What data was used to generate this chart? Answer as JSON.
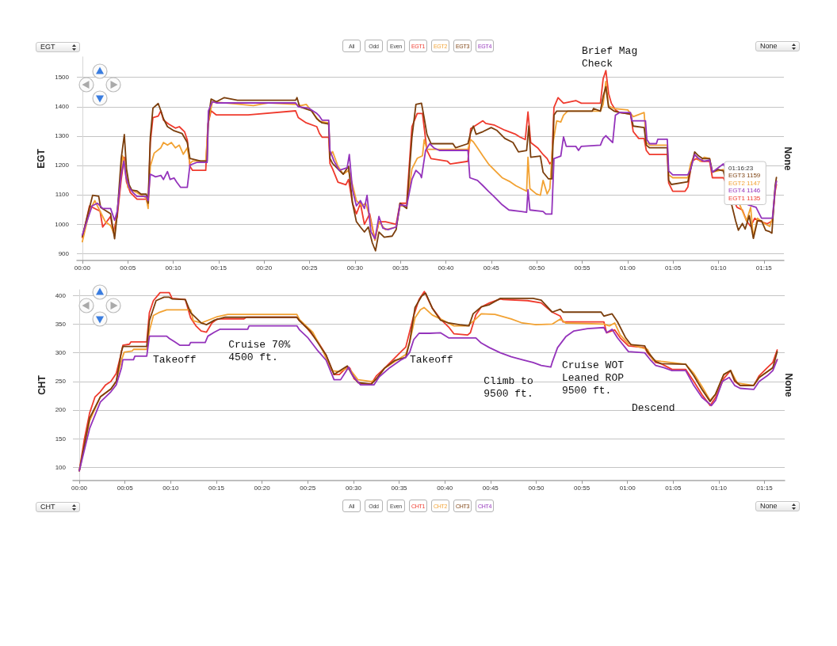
{
  "chart_data": [
    {
      "type": "line",
      "ylabel": "EGT",
      "y2label": "None",
      "legend": "top",
      "grid": "y",
      "marker": "none",
      "annotations": [
        "All",
        "Odd",
        "Even",
        "Brief Mag\nCheck",
        "01:16:23\nEGT3 1159\nEGT2 1147\nEGT4 1146\nEGT1 1135"
      ],
      "xlim": [
        -0.6,
        77.2
      ],
      "xticks": [
        {
          "value": 0,
          "label": "00:00"
        },
        {
          "value": 5,
          "label": "00:05"
        },
        {
          "value": 10,
          "label": "00:10"
        },
        {
          "value": 15,
          "label": "00:15"
        },
        {
          "value": 20,
          "label": "00:20"
        },
        {
          "value": 25,
          "label": "00:25"
        },
        {
          "value": 30,
          "label": "00:30"
        },
        {
          "value": 35,
          "label": "00:35"
        },
        {
          "value": 40,
          "label": "00:40"
        },
        {
          "value": 45,
          "label": "00:45"
        },
        {
          "value": 50,
          "label": "00:50"
        },
        {
          "value": 55,
          "label": "00:55"
        },
        {
          "value": 60,
          "label": "01:00"
        },
        {
          "value": 65,
          "label": "01:05"
        },
        {
          "value": 70,
          "label": "01:10"
        },
        {
          "value": 75,
          "label": "01:15"
        }
      ],
      "ylim": [
        876,
        1570
      ],
      "yticks": [
        900,
        1000,
        1100,
        1200,
        1300,
        1400,
        1500
      ],
      "series": [
        {
          "name": "EGT1",
          "color": "#ef3a2d",
          "x": [
            0,
            0.79,
            1.95,
            2.24,
            2.68,
            3.11,
            3.4,
            3.84,
            4.28,
            4.62,
            4.86,
            5.29,
            6.02,
            7.04,
            7.24,
            7.48,
            7.77,
            8.35,
            8.64,
            8.93,
            9.51,
            10.24,
            10.67,
            11.26,
            11.55,
            11.84,
            12.13,
            13.58,
            13.82,
            14.17,
            14.75,
            18.24,
            23.47,
            23.76,
            24.64,
            25.8,
            26.09,
            26.38,
            27.11,
            27.25,
            27.54,
            28.13,
            29,
            29.29,
            29.73,
            30.16,
            30.6,
            31.04,
            31.62,
            32.2,
            32.64,
            33.36,
            34.53,
            34.96,
            35.69,
            36.27,
            36.85,
            37.43,
            37.92,
            38.37,
            40.18,
            40.48,
            42.43,
            42.73,
            44.08,
            44.39,
            45.29,
            46.49,
            47.69,
            48.14,
            48.74,
            49.04,
            49.34,
            50.1,
            50.7,
            51.15,
            51.45,
            51.66,
            51.9,
            52.35,
            52.95,
            54.3,
            54.91,
            57.01,
            57.31,
            57.61,
            57.91,
            58.21,
            58.66,
            59.11,
            60.32,
            60.62,
            61.22,
            61.82,
            62.06,
            62.42,
            64.37,
            64.52,
            64.97,
            66.33,
            66.63,
            67.08,
            67.53,
            68.13,
            69.03,
            69.33,
            70.54,
            72.04,
            72.64,
            73.09,
            73.54,
            73.99,
            74.44,
            75.34,
            75.94,
            76.24,
            76.38
          ],
          "values": [
            954,
            1062,
            1044,
            990,
            1008,
            1026,
            972,
            1026,
            1152,
            1228,
            1143,
            1107,
            1085,
            1085,
            1062,
            1278,
            1363,
            1368,
            1386,
            1354,
            1341,
            1327,
            1332,
            1314,
            1287,
            1197,
            1183,
            1183,
            1341,
            1386,
            1372,
            1372,
            1386,
            1363,
            1345,
            1332,
            1309,
            1296,
            1296,
            1206,
            1188,
            1143,
            1134,
            1152,
            1071,
            1035,
            1071,
            999,
            1035,
            945,
            1008,
            1008,
            999,
            1071,
            1071,
            1332,
            1377,
            1377,
            1251,
            1223,
            1214,
            1205,
            1214,
            1325,
            1352,
            1343,
            1338,
            1320,
            1306,
            1297,
            1288,
            1382,
            1278,
            1260,
            1237,
            1223,
            1205,
            1214,
            1398,
            1431,
            1412,
            1421,
            1412,
            1412,
            1495,
            1523,
            1445,
            1412,
            1389,
            1380,
            1375,
            1315,
            1292,
            1292,
            1251,
            1237,
            1237,
            1140,
            1112,
            1112,
            1126,
            1214,
            1223,
            1214,
            1214,
            1158,
            1158,
            1057,
            1048,
            1011,
            992,
            1020,
            1011,
            1001,
            1011,
            1112,
            1135
          ]
        },
        {
          "name": "EGT2",
          "color": "#f2a233",
          "x": [
            0,
            0.79,
            1.37,
            1.95,
            2.53,
            3.11,
            3.55,
            3.98,
            4.42,
            4.71,
            5,
            5.44,
            6.31,
            7.04,
            7.24,
            7.48,
            7.91,
            8.64,
            8.93,
            9.37,
            9.8,
            10.24,
            10.67,
            11.11,
            11.55,
            11.84,
            12.13,
            13.58,
            13.87,
            14.31,
            15.33,
            18.82,
            20.56,
            23.47,
            24.05,
            24.64,
            25.22,
            25.65,
            26.09,
            27.11,
            27.25,
            27.54,
            28.13,
            28.71,
            29.29,
            29.73,
            30.16,
            30.74,
            31.18,
            31.62,
            32.2,
            32.64,
            33.36,
            34.53,
            34.96,
            35.69,
            36.27,
            36.85,
            37.43,
            37.62,
            37.92,
            42.43,
            42.73,
            43.03,
            43.48,
            44.08,
            44.69,
            45.29,
            46.19,
            47.09,
            47.69,
            48.59,
            48.89,
            49.04,
            49.25,
            49.95,
            50.4,
            50.7,
            51.15,
            51.45,
            51.75,
            52.2,
            52.65,
            52.95,
            53.4,
            57.01,
            57.31,
            57.61,
            57.91,
            58.51,
            60.02,
            60.62,
            61.82,
            62.06,
            62.42,
            64.37,
            64.52,
            64.97,
            66.63,
            66.93,
            67.38,
            67.98,
            68.43,
            69.03,
            69.33,
            70.54,
            72.34,
            73.09,
            73.54,
            73.84,
            74.29,
            75.04,
            75.64,
            75.94,
            76.24,
            76.38
          ],
          "values": [
            940,
            1044,
            1080,
            1044,
            1008,
            995,
            963,
            1080,
            1233,
            1206,
            1125,
            1116,
            1102,
            1089,
            1053,
            1197,
            1242,
            1260,
            1278,
            1269,
            1278,
            1260,
            1269,
            1238,
            1260,
            1206,
            1215,
            1215,
            1350,
            1417,
            1414,
            1404,
            1413,
            1408,
            1404,
            1408,
            1386,
            1368,
            1350,
            1345,
            1233,
            1247,
            1197,
            1170,
            1183,
            1134,
            1080,
            1062,
            1071,
            1026,
            945,
            1008,
            981,
            990,
            1062,
            1062,
            1188,
            1224,
            1233,
            1288,
            1255,
            1255,
            1288,
            1280,
            1260,
            1232,
            1205,
            1186,
            1158,
            1144,
            1131,
            1117,
            1112,
            1228,
            1121,
            1103,
            1098,
            1149,
            1103,
            1121,
            1269,
            1352,
            1348,
            1371,
            1385,
            1385,
            1408,
            1486,
            1403,
            1394,
            1389,
            1366,
            1380,
            1278,
            1269,
            1269,
            1168,
            1158,
            1158,
            1205,
            1237,
            1214,
            1228,
            1223,
            1177,
            1186,
            1066,
            1011,
            1057,
            955,
            1020,
            1002,
            992,
            1020,
            1121,
            1147
          ]
        },
        {
          "name": "EGT3",
          "color": "#7b3e0c",
          "x": [
            0,
            1.13,
            1.8,
            2.01,
            3.11,
            3.55,
            3.84,
            4.28,
            4.62,
            4.86,
            5.15,
            5.44,
            6.02,
            6.46,
            7.04,
            7.24,
            7.48,
            7.77,
            8.35,
            8.64,
            8.93,
            9.37,
            10.09,
            10.97,
            11.55,
            11.84,
            13,
            13.73,
            13.87,
            14.17,
            14.75,
            15.62,
            17.07,
            23.47,
            23.62,
            23.91,
            25.22,
            25.8,
            26.38,
            27.11,
            27.25,
            27.54,
            28.13,
            28.71,
            29.29,
            29.73,
            30.16,
            30.6,
            31.04,
            31.47,
            31.91,
            32.26,
            32.64,
            33.22,
            34.09,
            34.53,
            34.96,
            35.69,
            36.27,
            36.71,
            37.32,
            37.62,
            37.92,
            38.37,
            40.78,
            41.08,
            42.43,
            42.73,
            43.03,
            43.33,
            44.08,
            44.99,
            45.59,
            46.49,
            47.39,
            47.99,
            48.89,
            49.13,
            49.34,
            50.4,
            50.7,
            51.3,
            51.66,
            51.9,
            52.2,
            56.11,
            56.26,
            57.01,
            57.31,
            57.61,
            57.91,
            58.51,
            59.11,
            60.32,
            60.62,
            61.82,
            62.06,
            62.42,
            64.37,
            64.52,
            64.82,
            66.63,
            66.93,
            67.38,
            67.83,
            68.28,
            69.03,
            69.33,
            69.93,
            70.54,
            71.89,
            72.19,
            72.64,
            72.94,
            73.39,
            73.84,
            74.29,
            74.74,
            75.19,
            75.64,
            75.88,
            76.24,
            76.38
          ],
          "values": [
            958,
            1098,
            1095,
            1057,
            1035,
            950,
            1035,
            1224,
            1305,
            1188,
            1134,
            1116,
            1113,
            1102,
            1102,
            1071,
            1296,
            1395,
            1411,
            1386,
            1359,
            1332,
            1318,
            1309,
            1278,
            1224,
            1215,
            1215,
            1359,
            1426,
            1417,
            1431,
            1422,
            1422,
            1431,
            1400,
            1386,
            1359,
            1345,
            1341,
            1224,
            1206,
            1188,
            1170,
            1197,
            1071,
            1008,
            990,
            973,
            990,
            936,
            909,
            973,
            955,
            959,
            981,
            1071,
            1053,
            1296,
            1408,
            1412,
            1361,
            1306,
            1274,
            1274,
            1260,
            1274,
            1311,
            1334,
            1306,
            1315,
            1329,
            1320,
            1292,
            1278,
            1246,
            1251,
            1334,
            1228,
            1232,
            1177,
            1154,
            1154,
            1371,
            1385,
            1385,
            1394,
            1385,
            1435,
            1468,
            1398,
            1385,
            1380,
            1375,
            1334,
            1329,
            1269,
            1260,
            1260,
            1149,
            1135,
            1144,
            1186,
            1246,
            1232,
            1223,
            1223,
            1177,
            1186,
            1181,
            1011,
            979,
            1002,
            983,
            1029,
            951,
            1011,
            1011,
            979,
            974,
            969,
            1131,
            1159
          ]
        },
        {
          "name": "EGT4",
          "color": "#9433bb",
          "x": [
            0,
            0.49,
            1.08,
            1.66,
            2.24,
            3.11,
            3.55,
            3.84,
            4.28,
            4.57,
            4.8,
            5.15,
            5.58,
            6.02,
            7.04,
            7.24,
            7.48,
            8.06,
            8.64,
            8.93,
            9.37,
            9.66,
            10.09,
            10.38,
            10.82,
            11.55,
            11.84,
            12.57,
            13.73,
            13.87,
            14.31,
            14.75,
            23.47,
            23.76,
            24.93,
            25.8,
            26.09,
            26.38,
            27.11,
            27.25,
            27.69,
            28.27,
            29.14,
            29.38,
            29.73,
            30.16,
            30.6,
            31.04,
            31.33,
            31.76,
            32.2,
            32.64,
            33.07,
            33.65,
            34.53,
            34.96,
            35.69,
            36.27,
            36.71,
            37.17,
            37.32,
            37.77,
            38.22,
            38.67,
            39.28,
            42.43,
            42.64,
            43.48,
            44.08,
            44.69,
            45.29,
            46.19,
            46.94,
            48.29,
            48.89,
            49.04,
            49.25,
            50.7,
            51,
            51.66,
            51.9,
            52.65,
            52.95,
            53.25,
            54.3,
            54.6,
            54.91,
            57.01,
            57.31,
            57.61,
            58.36,
            58.66,
            59.11,
            60.32,
            60.47,
            61.97,
            62.12,
            62.42,
            63.17,
            63.32,
            64.37,
            64.52,
            64.97,
            66.63,
            66.93,
            67.38,
            67.83,
            68.43,
            69.03,
            69.33,
            70.54,
            73.24,
            74.14,
            74.74,
            75.94,
            76.24,
            76.38
          ],
          "values": [
            963,
            1008,
            1062,
            1071,
            1053,
            1053,
            1013,
            1044,
            1170,
            1215,
            1161,
            1125,
            1107,
            1094,
            1094,
            1080,
            1170,
            1161,
            1166,
            1152,
            1179,
            1152,
            1157,
            1143,
            1125,
            1125,
            1201,
            1210,
            1210,
            1386,
            1417,
            1413,
            1413,
            1400,
            1395,
            1377,
            1368,
            1354,
            1354,
            1251,
            1215,
            1183,
            1192,
            1237,
            1116,
            1062,
            1080,
            1053,
            1098,
            973,
            950,
            1026,
            986,
            981,
            990,
            1066,
            1062,
            1152,
            1183,
            1170,
            1158,
            1251,
            1274,
            1260,
            1251,
            1251,
            1158,
            1149,
            1131,
            1112,
            1094,
            1066,
            1048,
            1043,
            1040,
            1117,
            1048,
            1043,
            1034,
            1034,
            1223,
            1232,
            1297,
            1265,
            1265,
            1251,
            1265,
            1269,
            1292,
            1301,
            1278,
            1371,
            1380,
            1380,
            1352,
            1352,
            1288,
            1274,
            1274,
            1289,
            1289,
            1181,
            1168,
            1168,
            1186,
            1237,
            1223,
            1214,
            1218,
            1177,
            1205,
            1066,
            1057,
            1020,
            1020,
            1121,
            1146
          ]
        }
      ]
    },
    {
      "type": "line",
      "ylabel": "CHT",
      "y2label": "None",
      "legend": "bottom",
      "grid": "y",
      "marker": "none",
      "annotations": [
        "All",
        "Odd",
        "Even",
        "Takeoff",
        "Cruise 70%\n4500 ft.",
        "Takeoff",
        "Climb to\n9500 ft.",
        "Cruise WOT\nLeaned ROP\n9500 ft.",
        "Descend"
      ],
      "xlim": [
        -0.7,
        77.2
      ],
      "xticks": [
        {
          "value": 0,
          "label": "00:00"
        },
        {
          "value": 5,
          "label": "00:05"
        },
        {
          "value": 10,
          "label": "00:10"
        },
        {
          "value": 15,
          "label": "00:15"
        },
        {
          "value": 20,
          "label": "00:20"
        },
        {
          "value": 25,
          "label": "00:25"
        },
        {
          "value": 30,
          "label": "00:30"
        },
        {
          "value": 35,
          "label": "00:35"
        },
        {
          "value": 40,
          "label": "00:40"
        },
        {
          "value": 45,
          "label": "00:45"
        },
        {
          "value": 50,
          "label": "00:50"
        },
        {
          "value": 55,
          "label": "00:55"
        },
        {
          "value": 60,
          "label": "01:00"
        },
        {
          "value": 65,
          "label": "01:05"
        },
        {
          "value": 70,
          "label": "01:10"
        },
        {
          "value": 75,
          "label": "01:15"
        }
      ],
      "ylim": [
        77,
        410
      ],
      "yticks": [
        100,
        150,
        200,
        250,
        300,
        350,
        400
      ],
      "series": [
        {
          "name": "CHT1",
          "color": "#ef3a2d",
          "x": [
            0,
            0.55,
            1.13,
            1.72,
            2.3,
            2.88,
            3.46,
            4.04,
            4.48,
            4.77,
            5.49,
            5.64,
            7.38,
            7.67,
            8.11,
            8.84,
            9.85,
            10.15,
            11.6,
            12.18,
            12.76,
            13.34,
            13.92,
            14.51,
            15.09,
            17.99,
            18.28,
            23.81,
            24.1,
            24.97,
            26.13,
            27.01,
            27.88,
            28.46,
            28.9,
            29.33,
            29.62,
            30.06,
            30.78,
            31.95,
            32.53,
            33.4,
            34.27,
            35.15,
            35.73,
            36.6,
            37.18,
            37.76,
            38.63,
            39.52,
            40.42,
            41.01,
            42.5,
            42.8,
            43.4,
            43.99,
            44.89,
            46.08,
            46.38,
            49.06,
            50.55,
            51.75,
            52.64,
            52.94,
            57.41,
            57.71,
            58.6,
            59.2,
            60.1,
            61.88,
            62.18,
            63.08,
            63.67,
            64.87,
            66.36,
            67.25,
            68.15,
            69.04,
            69.64,
            70.53,
            71.28,
            71.72,
            72.32,
            73.81,
            74.41,
            75.3,
            75.9,
            76.38
          ],
          "values": [
            94,
            149,
            195,
            223,
            232,
            244,
            250,
            264,
            292,
            313,
            315,
            319,
            319,
            370,
            391,
            405,
            405,
            395,
            393,
            361,
            347,
            338,
            336,
            352,
            359,
            359,
            362,
            362,
            356,
            342,
            319,
            296,
            262,
            262,
            269,
            276,
            273,
            255,
            246,
            246,
            260,
            273,
            287,
            301,
            310,
            365,
            393,
            407,
            378,
            359,
            345,
            333,
            331,
            335,
            366,
            380,
            387,
            394,
            393,
            391,
            387,
            371,
            364,
            354,
            354,
            335,
            340,
            326,
            312,
            309,
            300,
            283,
            281,
            271,
            271,
            250,
            227,
            208,
            222,
            255,
            269,
            250,
            243,
            243,
            260,
            274,
            283,
            305
          ]
        },
        {
          "name": "CHT2",
          "color": "#f2a233",
          "x": [
            0,
            1.13,
            2.3,
            3.46,
            4.04,
            4.62,
            4.91,
            5.78,
            5.93,
            7.38,
            7.67,
            8.11,
            8.69,
            9.56,
            12.18,
            12.47,
            13.34,
            15.09,
            16.25,
            23.81,
            24.1,
            25.55,
            26.72,
            27.59,
            28.46,
            29.33,
            29.62,
            30.49,
            31.95,
            32.53,
            33.4,
            34.56,
            35.73,
            36.16,
            36.74,
            37.33,
            37.73,
            38.63,
            39.52,
            41.01,
            42.5,
            43.4,
            43.99,
            45.49,
            47.27,
            48.47,
            49.96,
            51.75,
            52.64,
            53.24,
            57.41,
            58.01,
            58.6,
            59.2,
            60.1,
            62.18,
            62.78,
            63.67,
            66.36,
            67.25,
            68.15,
            69.04,
            69.64,
            70.53,
            71.28,
            72.02,
            73.81,
            74.41,
            75.3,
            75.9,
            76.38
          ],
          "values": [
            94,
            181,
            223,
            237,
            250,
            287,
            301,
            303,
            306,
            306,
            338,
            365,
            370,
            375,
            375,
            356,
            352,
            363,
            367,
            367,
            358,
            336,
            301,
            269,
            267,
            273,
            271,
            253,
            250,
            253,
            273,
            285,
            297,
            319,
            361,
            375,
            379,
            366,
            359,
            347,
            347,
            359,
            368,
            367,
            359,
            352,
            349,
            350,
            359,
            352,
            350,
            347,
            352,
            331,
            316,
            306,
            287,
            285,
            280,
            264,
            241,
            217,
            228,
            262,
            269,
            247,
            243,
            257,
            267,
            274,
            288
          ]
        },
        {
          "name": "CHT3",
          "color": "#7b3e0c",
          "x": [
            0,
            1.13,
            2.3,
            3.46,
            4.04,
            4.62,
            4.77,
            7.38,
            7.67,
            8.4,
            9.27,
            9.85,
            10.15,
            11.6,
            12.18,
            12.76,
            13.34,
            13.92,
            14.8,
            15.96,
            23.81,
            24.1,
            25.26,
            26.42,
            27.01,
            27.88,
            28.75,
            29.33,
            29.77,
            30.49,
            31.95,
            32.53,
            33.4,
            34.56,
            35.73,
            36.16,
            36.74,
            37.47,
            37.91,
            38.63,
            39.52,
            40.42,
            41.61,
            42.65,
            43.1,
            43.99,
            44.89,
            46.08,
            49.66,
            50.55,
            51.75,
            52.64,
            52.94,
            57.11,
            57.41,
            58.31,
            58.9,
            59.8,
            60.39,
            61.88,
            62.18,
            63.08,
            63.67,
            66.36,
            67.25,
            68.15,
            69.04,
            69.64,
            70.53,
            71.28,
            71.72,
            72.32,
            73.81,
            74.41,
            75.3,
            75.9,
            76.38
          ],
          "values": [
            94,
            186,
            223,
            237,
            250,
            303,
            311,
            311,
            356,
            391,
            397,
            397,
            394,
            393,
            370,
            361,
            352,
            349,
            357,
            362,
            362,
            356,
            338,
            310,
            296,
            262,
            271,
            277,
            264,
            248,
            245,
            255,
            273,
            287,
            292,
            319,
            379,
            399,
            404,
            378,
            357,
            352,
            349,
            347,
            368,
            380,
            384,
            395,
            395,
            392,
            371,
            376,
            371,
            371,
            364,
            368,
            354,
            326,
            314,
            312,
            302,
            285,
            281,
            280,
            260,
            236,
            215,
            228,
            262,
            269,
            252,
            243,
            243,
            257,
            267,
            274,
            302
          ]
        },
        {
          "name": "CHT4",
          "color": "#9433bb",
          "x": [
            0,
            1.13,
            2.3,
            3.46,
            4.04,
            4.62,
            4.77,
            5.93,
            6.08,
            7.38,
            7.67,
            9.56,
            9.85,
            10.44,
            11.02,
            12.03,
            12.18,
            13.78,
            14.07,
            14.8,
            15.38,
            18.43,
            18.58,
            23.81,
            24.1,
            24.97,
            26.13,
            27.01,
            27.88,
            28.6,
            29.04,
            29.48,
            29.91,
            30.78,
            32.24,
            32.82,
            33.98,
            35.15,
            35.73,
            36.16,
            36.6,
            37.18,
            38.34,
            39.52,
            40.42,
            43.4,
            43.99,
            44.89,
            46.08,
            47.27,
            48.47,
            49.66,
            50.55,
            51.6,
            51.75,
            52.34,
            53.24,
            54.13,
            55.62,
            57.41,
            57.71,
            58.31,
            58.9,
            60.1,
            61.88,
            62.48,
            63.08,
            63.97,
            64.87,
            66.36,
            67.25,
            68.15,
            69.19,
            69.64,
            70.38,
            71.13,
            71.72,
            72.32,
            73.81,
            74.41,
            75.3,
            75.9,
            76.38
          ],
          "values": [
            94,
            168,
            214,
            232,
            244,
            274,
            288,
            288,
            294,
            294,
            329,
            329,
            325,
            319,
            313,
            313,
            318,
            318,
            329,
            336,
            341,
            341,
            347,
            347,
            340,
            327,
            303,
            287,
            253,
            253,
            264,
            275,
            260,
            244,
            244,
            258,
            274,
            287,
            292,
            301,
            323,
            334,
            334,
            335,
            326,
            326,
            317,
            309,
            300,
            293,
            288,
            283,
            278,
            275,
            283,
            309,
            328,
            338,
            342,
            344,
            335,
            341,
            326,
            302,
            300,
            288,
            278,
            274,
            269,
            269,
            243,
            222,
            208,
            217,
            250,
            257,
            243,
            238,
            236,
            250,
            260,
            269,
            288
          ]
        }
      ]
    }
  ]
}
